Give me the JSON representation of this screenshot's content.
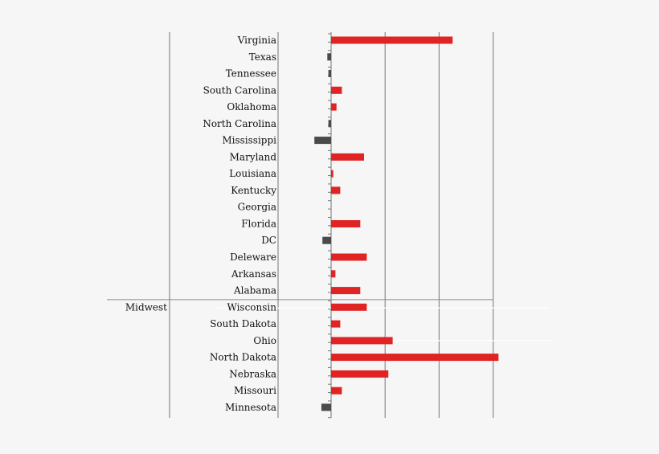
{
  "chart_data": {
    "type": "bar",
    "orientation": "horizontal",
    "title": "",
    "xlabel": "",
    "ylabel": "",
    "grid": true,
    "xlim": [
      -3,
      31
    ],
    "categories": [
      "Virginia",
      "Texas",
      "Tennessee",
      "South Carolina",
      "Oklahoma",
      "North Carolina",
      "Mississippi",
      "Maryland",
      "Louisiana",
      "Kentucky",
      "Georgia",
      "Florida",
      "DC",
      "Deleware",
      "Arkansas",
      "Alabama",
      "Wisconsin",
      "South Dakota",
      "Ohio",
      "North Dakota",
      "Nebraska",
      "Missouri",
      "Minnesota"
    ],
    "values": [
      22.5,
      -0.7,
      -0.5,
      2.0,
      1.0,
      -0.5,
      -3.1,
      6.1,
      0.4,
      1.7,
      0.0,
      5.4,
      -1.6,
      6.6,
      0.8,
      5.4,
      6.6,
      1.7,
      11.4,
      31.0,
      10.6,
      2.0,
      -1.8
    ],
    "groups": [
      {
        "label": "",
        "from": "Virginia",
        "to": "Alabama"
      },
      {
        "label": "Midwest",
        "from": "Wisconsin",
        "to": "Minnesota"
      }
    ],
    "colors": {
      "positive": "#e02424",
      "negative": "#4a4a4a",
      "grid": "#8c8c8c",
      "axis": "#777777"
    }
  }
}
